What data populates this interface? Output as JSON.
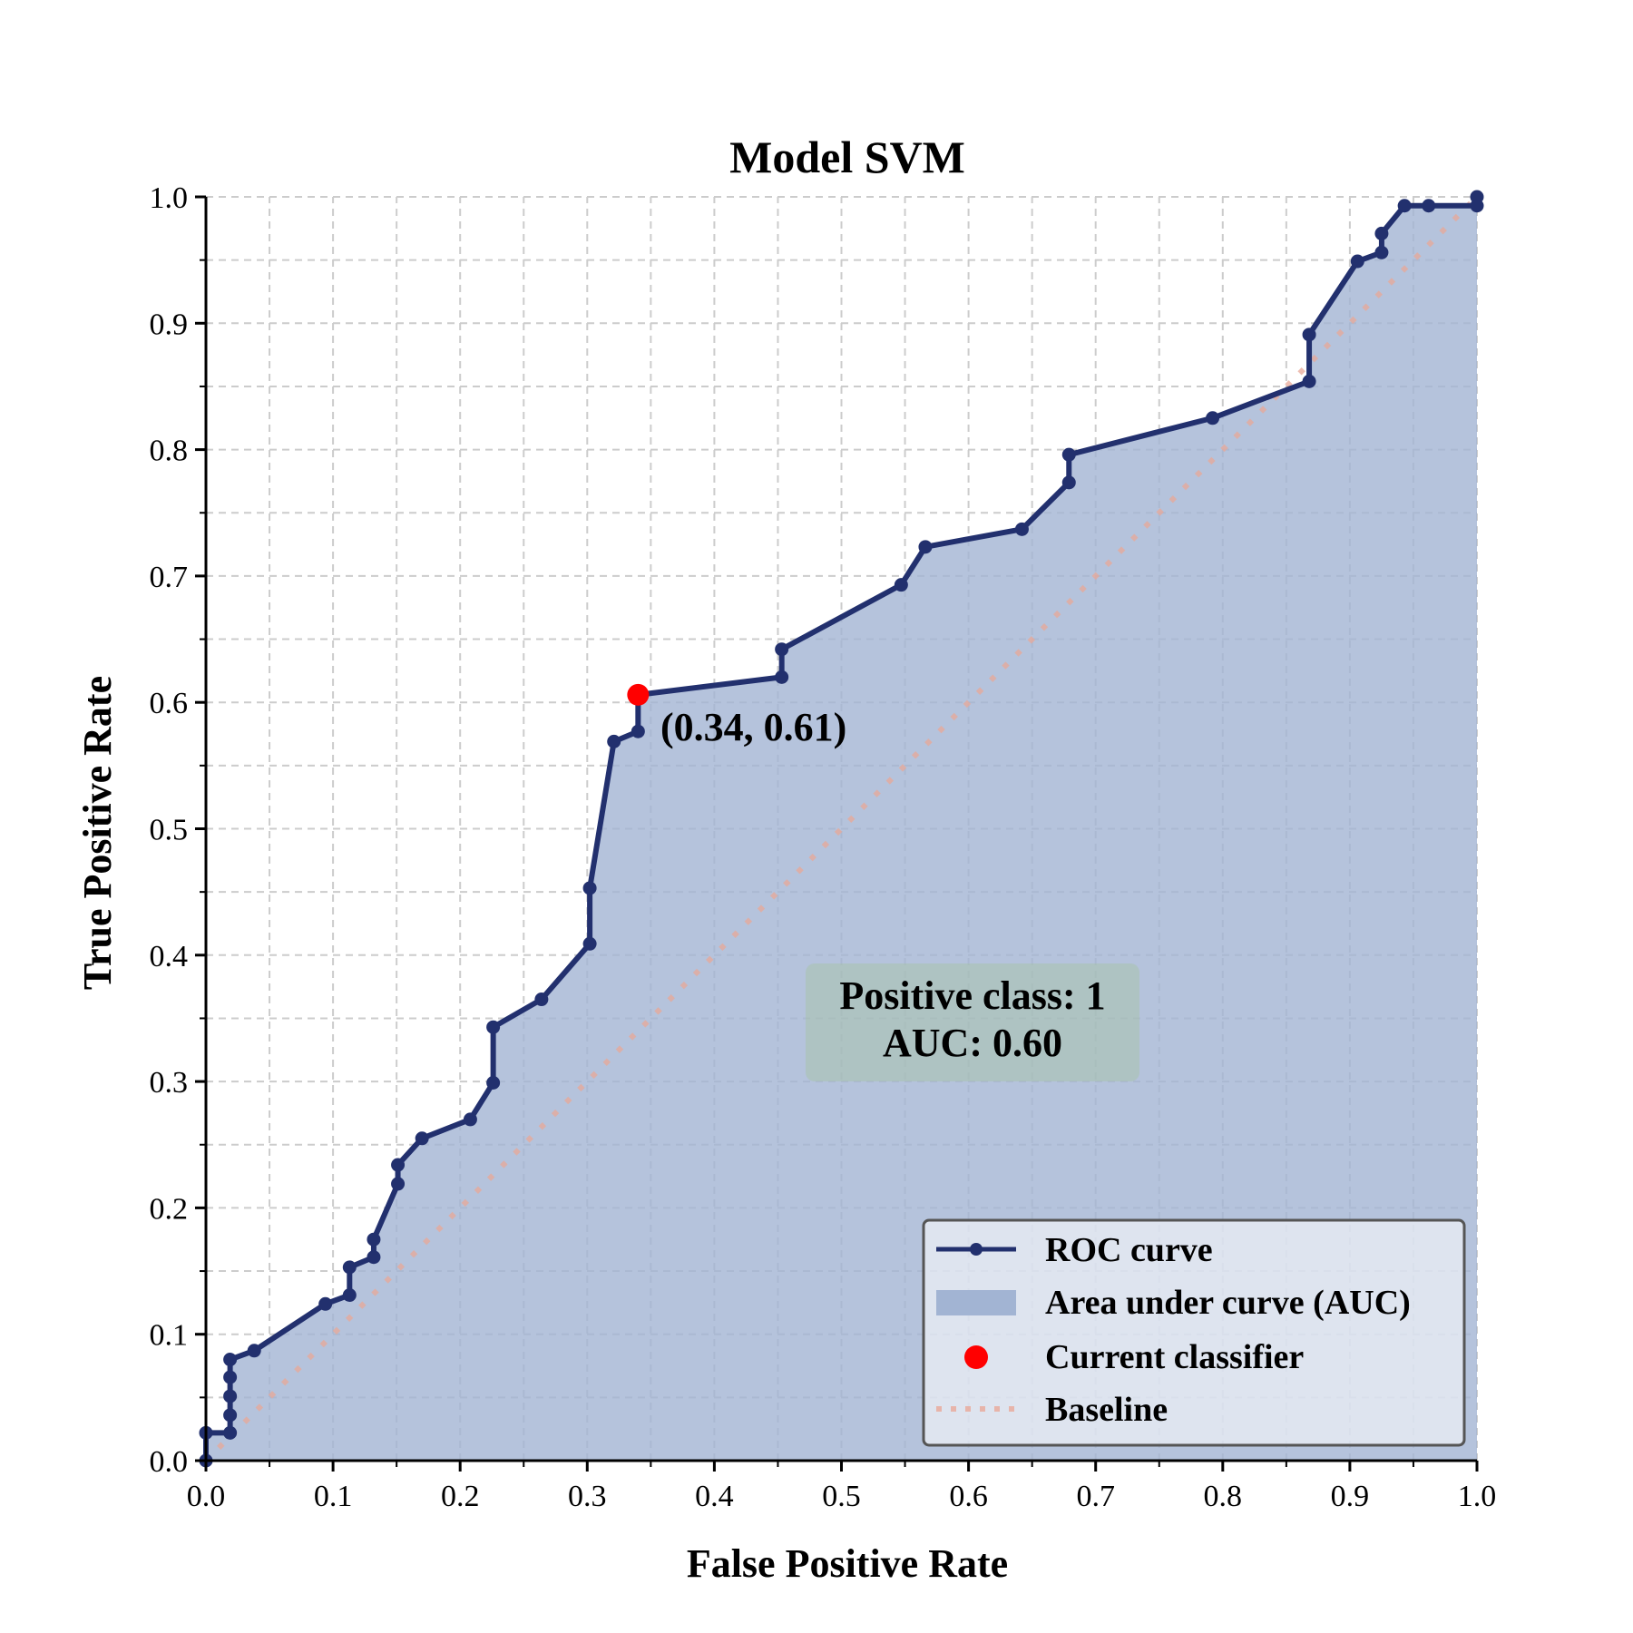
{
  "chart_data": {
    "type": "line",
    "title": "Model SVM",
    "xlabel": "False Positive Rate",
    "ylabel": "True Positive Rate",
    "xlim": [
      0.0,
      1.0
    ],
    "ylim": [
      0.0,
      1.0
    ],
    "x_ticks": [
      "0.0",
      "0.1",
      "0.2",
      "0.3",
      "0.4",
      "0.5",
      "0.6",
      "0.7",
      "0.8",
      "0.9",
      "1.0"
    ],
    "y_ticks": [
      "0.0",
      "0.1",
      "0.2",
      "0.3",
      "0.4",
      "0.5",
      "0.6",
      "0.7",
      "0.8",
      "0.9",
      "1.0"
    ],
    "grid": true,
    "series": [
      {
        "name": "ROC curve",
        "color": "#22306e",
        "points": [
          [
            0.0,
            0.0
          ],
          [
            0.0,
            0.022
          ],
          [
            0.019,
            0.022
          ],
          [
            0.019,
            0.036
          ],
          [
            0.019,
            0.051
          ],
          [
            0.019,
            0.066
          ],
          [
            0.019,
            0.08
          ],
          [
            0.038,
            0.087
          ],
          [
            0.094,
            0.124
          ],
          [
            0.113,
            0.131
          ],
          [
            0.113,
            0.153
          ],
          [
            0.132,
            0.161
          ],
          [
            0.132,
            0.175
          ],
          [
            0.151,
            0.219
          ],
          [
            0.151,
            0.234
          ],
          [
            0.17,
            0.255
          ],
          [
            0.208,
            0.27
          ],
          [
            0.226,
            0.299
          ],
          [
            0.226,
            0.343
          ],
          [
            0.264,
            0.365
          ],
          [
            0.302,
            0.409
          ],
          [
            0.302,
            0.453
          ],
          [
            0.321,
            0.569
          ],
          [
            0.34,
            0.577
          ],
          [
            0.34,
            0.606
          ],
          [
            0.453,
            0.62
          ],
          [
            0.453,
            0.642
          ],
          [
            0.547,
            0.693
          ],
          [
            0.566,
            0.723
          ],
          [
            0.642,
            0.737
          ],
          [
            0.679,
            0.774
          ],
          [
            0.679,
            0.796
          ],
          [
            0.792,
            0.825
          ],
          [
            0.868,
            0.854
          ],
          [
            0.868,
            0.891
          ],
          [
            0.906,
            0.949
          ],
          [
            0.925,
            0.956
          ],
          [
            0.925,
            0.971
          ],
          [
            0.943,
            0.993
          ],
          [
            0.962,
            0.993
          ],
          [
            1.0,
            0.993
          ],
          [
            1.0,
            1.0
          ]
        ]
      }
    ],
    "auc_fill_color": "#a2b4d3",
    "baseline": {
      "name": "Baseline",
      "points": [
        [
          0.0,
          0.0
        ],
        [
          1.0,
          1.0
        ]
      ],
      "color": "#e8a898"
    },
    "current_classifier": {
      "name": "Current classifier",
      "x": 0.34,
      "y": 0.606,
      "label": "(0.34, 0.61)",
      "color": "#ff0000"
    },
    "info_box": {
      "line1": "Positive class: 1",
      "line2": "AUC: 0.60",
      "color": "#a8c4a8"
    },
    "legend": {
      "placement": "bottom-right",
      "entries": [
        "ROC curve",
        "Area under curve (AUC)",
        "Current classifier",
        "Baseline"
      ]
    }
  }
}
